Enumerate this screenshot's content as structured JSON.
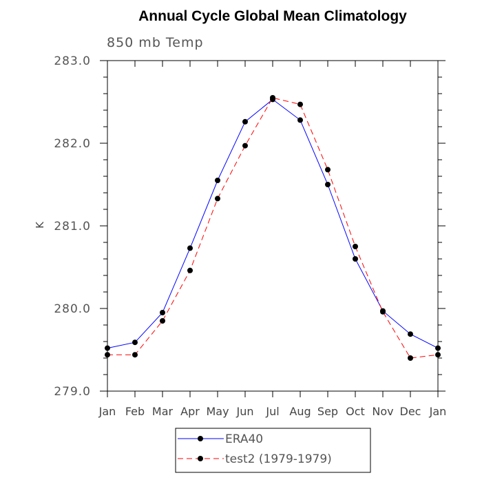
{
  "chart_data": {
    "type": "line",
    "title": "Annual Cycle Global Mean Climatology",
    "subtitle": "850 mb Temp",
    "xlabel": "",
    "ylabel": "K",
    "categories": [
      "Jan",
      "Feb",
      "Mar",
      "Apr",
      "May",
      "Jun",
      "Jul",
      "Aug",
      "Sep",
      "Oct",
      "Nov",
      "Dec",
      "Jan"
    ],
    "ylim": [
      279.0,
      283.0
    ],
    "yticks": [
      "279.0",
      "280.0",
      "281.0",
      "282.0",
      "283.0"
    ],
    "series": [
      {
        "name": "ERA40",
        "color": "#0000ff",
        "dash": "solid",
        "values": [
          279.52,
          279.59,
          279.95,
          280.73,
          281.55,
          282.26,
          282.53,
          282.28,
          281.5,
          280.6,
          279.97,
          279.69,
          279.52
        ]
      },
      {
        "name": "test2 (1979-1979)",
        "color": "#ff0000",
        "dash": "dashed",
        "values": [
          279.44,
          279.44,
          279.85,
          280.46,
          281.33,
          281.97,
          282.55,
          282.47,
          281.68,
          280.75,
          279.96,
          279.4,
          279.44
        ]
      }
    ],
    "grid": false,
    "legend_position": "bottom-center"
  }
}
